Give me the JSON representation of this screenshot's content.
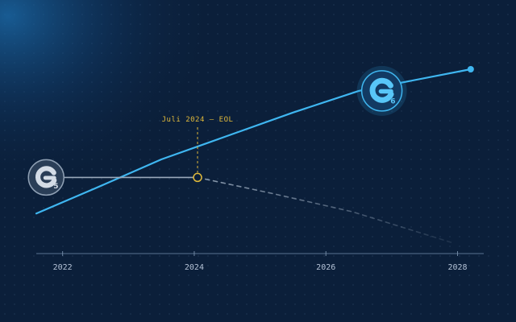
{
  "chart_data": {
    "type": "line",
    "title": "",
    "xlabel": "",
    "ylabel": "",
    "x_ticks": [
      "2022",
      "2024",
      "2026",
      "2028"
    ],
    "xlim": [
      2021.6,
      2028.3
    ],
    "ylim": [
      0,
      100
    ],
    "grid": true,
    "series": [
      {
        "name": "",
        "badge": "6",
        "color": "#3fb6f0",
        "style": "solid",
        "points": [
          [
            2021.6,
            20
          ],
          [
            2022.5,
            34
          ],
          [
            2023.5,
            50
          ],
          [
            2024.5,
            63
          ],
          [
            2025.5,
            76
          ],
          [
            2026.5,
            88
          ],
          [
            2028.2,
            100
          ]
        ]
      },
      {
        "name": "",
        "badge": "5",
        "color": "#9aa9bb",
        "style": "solid",
        "points": [
          [
            2021.6,
            40
          ],
          [
            2024.05,
            40
          ]
        ]
      },
      {
        "name": "",
        "badge": "5",
        "color": "#8a99ab",
        "style": "dashed",
        "points": [
          [
            2024.05,
            40
          ],
          [
            2025.2,
            31
          ],
          [
            2026.4,
            21
          ],
          [
            2027.9,
            4
          ]
        ]
      }
    ],
    "annotations": [
      {
        "text": "Juli 2024 — EOL",
        "x": 2024.05,
        "y": 40,
        "color": "#e0b93a"
      }
    ]
  },
  "badges": [
    {
      "letter": "G",
      "number": "5",
      "series": 1,
      "x": 2021.75,
      "y": 40,
      "theme": "grey"
    },
    {
      "letter": "G",
      "number": "6",
      "series": 0,
      "x": 2026.85,
      "y": 88,
      "theme": "blue"
    }
  ]
}
